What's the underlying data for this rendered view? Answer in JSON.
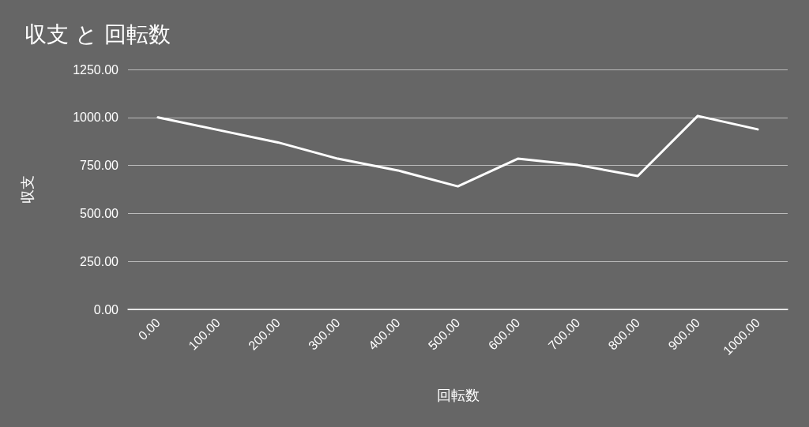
{
  "chart_data": {
    "type": "line",
    "title": "収支 と 回転数",
    "xlabel": "回転数",
    "ylabel": "収支",
    "categories": [
      "0.00",
      "100.00",
      "200.00",
      "300.00",
      "400.00",
      "500.00",
      "600.00",
      "700.00",
      "800.00",
      "900.00",
      "1000.00"
    ],
    "series": [
      {
        "color": "#ffffff",
        "values": [
          1000,
          935,
          870,
          785,
          724,
          641,
          785,
          752,
          695,
          1008,
          938
        ]
      }
    ],
    "ylim": [
      0,
      1250
    ],
    "yticks": [
      {
        "value": 0,
        "label": "0.00"
      },
      {
        "value": 250,
        "label": "250.00"
      },
      {
        "value": 500,
        "label": "500.00"
      },
      {
        "value": 750,
        "label": "750.00"
      },
      {
        "value": 1000,
        "label": "1000.00"
      },
      {
        "value": 1250,
        "label": "1250.00"
      }
    ],
    "grid": "y",
    "marker": "none",
    "line_style": "solid"
  }
}
